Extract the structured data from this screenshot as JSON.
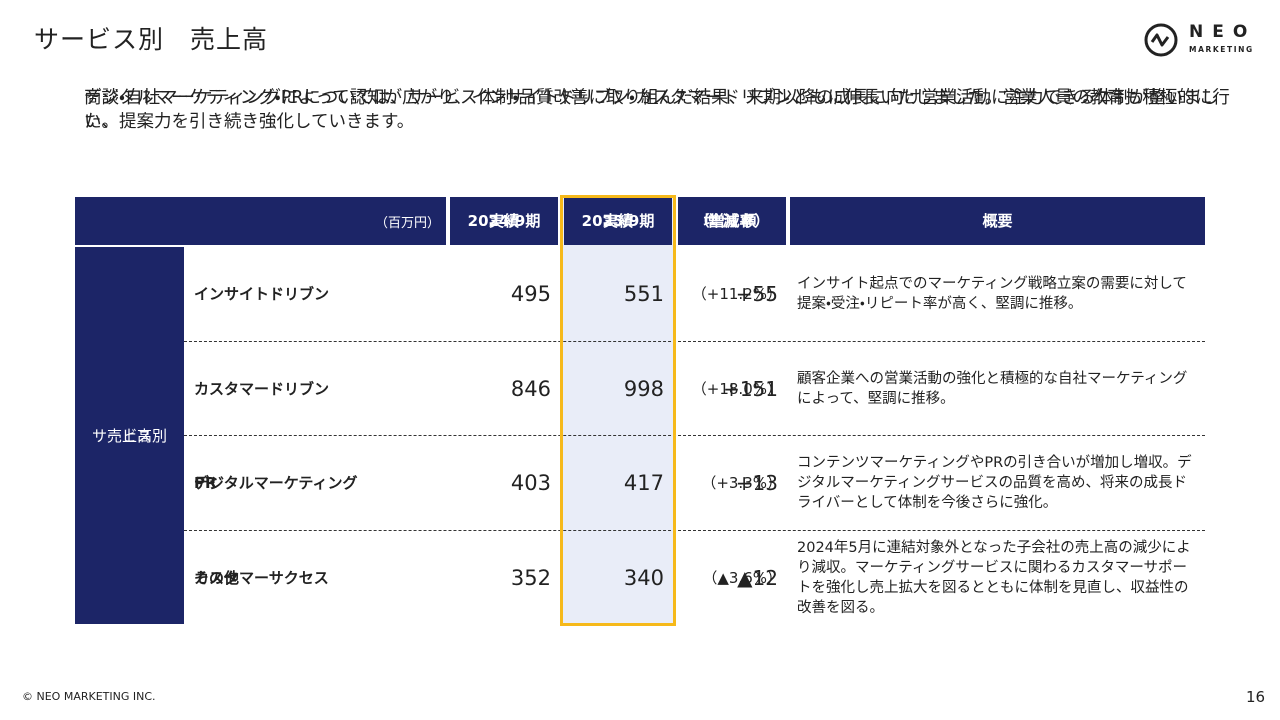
{
  "header": {
    "title": "サービス別　売上高",
    "logo": {
      "name": "NEO",
      "tagline": "MARKETING"
    }
  },
  "description": [
    "商談・自社マーケティングによって認知が広がり、インサイトドリブン・カスタマードリブンともに伸長いたしました。営業人員の教育も積極的に行い、提案力を引き続き強化していきます。",
    "デジタルマーケティング・PRについては、サービス体制・品質改善に取り組んだ結果、来期以降の成長に向け営業活動に注力できる体制が整いました。"
  ],
  "table": {
    "unit": "（百万円）",
    "columns": [
      [
        "2024/9期",
        "実績"
      ],
      [
        "2025/9期",
        "実績"
      ],
      [
        "増減額",
        "（増減率）"
      ],
      [
        "概要"
      ]
    ],
    "group": [
      "サービス別",
      "売上高"
    ],
    "rows": [
      {
        "name": [
          "インサイトドリブン"
        ],
        "fy2024": "495",
        "fy2025": "551",
        "change": "+55",
        "rate": "（+11.2%）",
        "summary": "インサイト起点でのマーケティング戦略立案の需要に対して提案・受注・リピート率が高く、堅調に推移。"
      },
      {
        "name": [
          "カスタマードリブン"
        ],
        "fy2024": "846",
        "fy2025": "998",
        "change": "+151",
        "rate": "（+18.0%）",
        "summary": "顧客企業への営業活動の強化と積極的な自社マーケティングによって、堅調に推移。"
      },
      {
        "name": [
          "デジタルマーケティング",
          "PR"
        ],
        "fy2024": "403",
        "fy2025": "417",
        "change": "+13",
        "rate": "（+3.3%）",
        "summary": "コンテンツマーケティングやPRの引き合いが増加し増収。デジタルマーケティングサービスの品質を高め、将来の成長ドライバーとして体制を今後さらに強化。"
      },
      {
        "name": [
          "カスタマーサクセス",
          "その他"
        ],
        "fy2024": "352",
        "fy2025": "340",
        "change": "▲12",
        "rate": "（▲3.6%）",
        "summary": "2024年5月に連結対象外となった子会社の売上高の減少により減収。マーケティングサービスに関わるカスタマーサポートを強化し売上拡大を図るとともに体制を見直し、収益性の改善を図る。"
      }
    ]
  },
  "footer": {
    "copyright": "© NEO MARKETING INC.",
    "page": "16"
  }
}
